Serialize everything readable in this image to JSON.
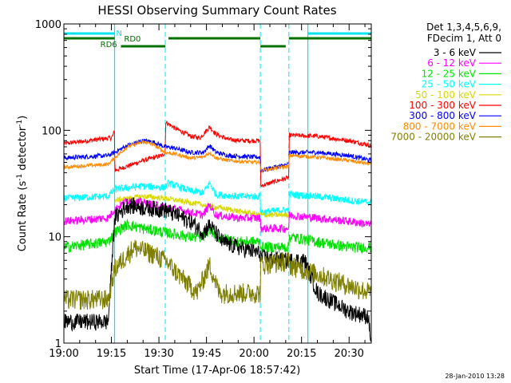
{
  "chart_data": {
    "type": "line",
    "title": "HESSI Observing Summary Count Rates",
    "xlabel": "Start Time (17-Apr-06 18:57:42)",
    "ylabel_main": "Count Rate (s",
    "ylabel_sup1": "-1",
    "ylabel_mid": " detector",
    "ylabel_sup2": "-1",
    "ylabel_end": ")",
    "y_scale": "log",
    "ylim": [
      1,
      1000
    ],
    "xlim_minutes": [
      0,
      97
    ],
    "x_ticks": [
      {
        "m": 0,
        "label": "19:00"
      },
      {
        "m": 15,
        "label": "19:15"
      },
      {
        "m": 30,
        "label": "19:30"
      },
      {
        "m": 45,
        "label": "19:45"
      },
      {
        "m": 60,
        "label": "20:00"
      },
      {
        "m": 75,
        "label": "20:15"
      },
      {
        "m": 90,
        "label": "20:30"
      }
    ],
    "y_ticks": [
      {
        "v": 1,
        "label": "1"
      },
      {
        "v": 10,
        "label": "10"
      },
      {
        "v": 100,
        "label": "100"
      },
      {
        "v": 1000,
        "label": "1000"
      }
    ],
    "legend": {
      "placement": "right",
      "header1": "Det 1,3,4,5,6,9,",
      "header2": "FDecim 1, Att 0",
      "entries": [
        {
          "name": "3 - 6 keV",
          "color": "#000000"
        },
        {
          "name": "6 - 12 keV",
          "color": "#ff00ff"
        },
        {
          "name": "12 - 25 keV",
          "color": "#00e000"
        },
        {
          "name": "25 - 50 keV",
          "color": "#00ffff"
        },
        {
          "name": "50 - 100 keV",
          "color": "#d8d800"
        },
        {
          "name": "100 - 300 keV",
          "color": "#ff0000"
        },
        {
          "name": "300 - 800 keV",
          "color": "#0000ff"
        },
        {
          "name": "800 - 7000 keV",
          "color": "#ff8c00"
        },
        {
          "name": "7000 - 20000 keV",
          "color": "#808000"
        }
      ]
    },
    "night_marker": "N",
    "night_color": "#00e5ee",
    "night_intervals": [
      [
        0,
        16
      ],
      [
        77,
        97
      ]
    ],
    "night_boundaries": [
      16,
      77
    ],
    "saa_boundaries": [
      0,
      16,
      32,
      62,
      71,
      97
    ],
    "rd0_label": "RD0",
    "rd0_intervals": [
      [
        0,
        16
      ],
      [
        33,
        62
      ],
      [
        71,
        97
      ]
    ],
    "rd6_label": "RD6",
    "rd6_intervals": [
      [
        18,
        32
      ],
      [
        62,
        70
      ]
    ],
    "rd_color": "#007000",
    "series": [
      {
        "name": "100 - 300 keV",
        "color": "#ff0000",
        "values": [
          [
            0,
            75
          ],
          [
            15,
            85
          ],
          [
            15.5,
            90
          ],
          [
            16,
            100
          ],
          [
            16.1,
            42
          ],
          [
            20,
            46
          ],
          [
            25,
            52
          ],
          [
            31,
            58
          ],
          [
            32,
            62
          ],
          [
            32.1,
            120
          ],
          [
            35,
            105
          ],
          [
            40,
            88
          ],
          [
            43,
            85
          ],
          [
            46,
            108
          ],
          [
            48,
            92
          ],
          [
            52,
            82
          ],
          [
            56,
            80
          ],
          [
            61,
            80
          ],
          [
            62,
            80
          ],
          [
            62.1,
            30
          ],
          [
            68,
            34
          ],
          [
            71,
            36
          ],
          [
            71.1,
            90
          ],
          [
            80,
            88
          ],
          [
            90,
            80
          ],
          [
            97,
            72
          ]
        ],
        "noise": 0.05
      },
      {
        "name": "300 - 800 keV",
        "color": "#0000ff",
        "values": [
          [
            0,
            55
          ],
          [
            14,
            58
          ],
          [
            16,
            62
          ],
          [
            20,
            72
          ],
          [
            25,
            80
          ],
          [
            28,
            78
          ],
          [
            32,
            70
          ],
          [
            35,
            68
          ],
          [
            40,
            62
          ],
          [
            44,
            62
          ],
          [
            46,
            72
          ],
          [
            48,
            62
          ],
          [
            52,
            58
          ],
          [
            60,
            56
          ],
          [
            62,
            56
          ],
          [
            62.1,
            42
          ],
          [
            71,
            48
          ],
          [
            71.1,
            62
          ],
          [
            80,
            62
          ],
          [
            90,
            58
          ],
          [
            97,
            52
          ]
        ],
        "noise": 0.05
      },
      {
        "name": "800 - 7000 keV",
        "color": "#ff8c00",
        "values": [
          [
            0,
            45
          ],
          [
            14,
            48
          ],
          [
            16,
            55
          ],
          [
            20,
            70
          ],
          [
            25,
            78
          ],
          [
            28,
            74
          ],
          [
            32,
            62
          ],
          [
            35,
            60
          ],
          [
            40,
            55
          ],
          [
            44,
            56
          ],
          [
            46,
            62
          ],
          [
            48,
            55
          ],
          [
            52,
            52
          ],
          [
            60,
            50
          ],
          [
            62,
            50
          ],
          [
            62.1,
            42
          ],
          [
            71,
            46
          ],
          [
            71.1,
            58
          ],
          [
            80,
            56
          ],
          [
            90,
            52
          ],
          [
            97,
            48
          ]
        ],
        "noise": 0.04
      },
      {
        "name": "25 - 50 keV",
        "color": "#00ffff",
        "values": [
          [
            0,
            23
          ],
          [
            14,
            24
          ],
          [
            16,
            28
          ],
          [
            25,
            30
          ],
          [
            32,
            29
          ],
          [
            33,
            32
          ],
          [
            40,
            27
          ],
          [
            44,
            26
          ],
          [
            46,
            32
          ],
          [
            48,
            25
          ],
          [
            55,
            24
          ],
          [
            62,
            24
          ],
          [
            62.1,
            17
          ],
          [
            71,
            18
          ],
          [
            71.1,
            25
          ],
          [
            80,
            24
          ],
          [
            90,
            22
          ],
          [
            97,
            21
          ]
        ],
        "noise": 0.08
      },
      {
        "name": "50 - 100 keV",
        "color": "#d8d800",
        "values": [
          [
            16,
            22
          ],
          [
            25,
            24
          ],
          [
            32,
            23
          ],
          [
            62.1,
            16
          ],
          [
            71,
            16
          ]
        ],
        "noise": 0.06
      },
      {
        "name": "6 - 12 keV",
        "color": "#ff00ff",
        "values": [
          [
            0,
            14
          ],
          [
            14,
            15
          ],
          [
            16,
            18
          ],
          [
            20,
            22
          ],
          [
            25,
            21
          ],
          [
            32,
            19
          ],
          [
            40,
            17
          ],
          [
            44,
            16
          ],
          [
            46,
            20
          ],
          [
            48,
            16
          ],
          [
            55,
            15
          ],
          [
            62,
            15
          ],
          [
            62.1,
            12
          ],
          [
            71,
            12
          ],
          [
            71.1,
            16
          ],
          [
            80,
            15
          ],
          [
            90,
            14
          ],
          [
            97,
            13
          ]
        ],
        "noise": 0.09
      },
      {
        "name": "12 - 25 keV",
        "color": "#00e000",
        "values": [
          [
            0,
            8
          ],
          [
            14,
            9
          ],
          [
            16,
            11
          ],
          [
            20,
            13
          ],
          [
            25,
            12
          ],
          [
            32,
            11
          ],
          [
            40,
            10
          ],
          [
            44,
            10
          ],
          [
            46,
            12
          ],
          [
            48,
            10
          ],
          [
            55,
            9
          ],
          [
            62,
            9
          ],
          [
            62.1,
            8
          ],
          [
            71,
            8
          ],
          [
            71.1,
            10
          ],
          [
            80,
            9
          ],
          [
            90,
            8
          ],
          [
            97,
            8
          ]
        ],
        "noise": 0.12
      },
      {
        "name": "3 - 6 keV",
        "color": "#000000",
        "values": [
          [
            0,
            1.6
          ],
          [
            14,
            1.6
          ],
          [
            16,
            15
          ],
          [
            20,
            20
          ],
          [
            25,
            19
          ],
          [
            32,
            18
          ],
          [
            40,
            14
          ],
          [
            44,
            11
          ],
          [
            46,
            13
          ],
          [
            50,
            9
          ],
          [
            55,
            8
          ],
          [
            62,
            7
          ],
          [
            62.1,
            6.5
          ],
          [
            70,
            6
          ],
          [
            76,
            6
          ],
          [
            80,
            3
          ],
          [
            90,
            2
          ],
          [
            96,
            1.8
          ],
          [
            97,
            1
          ]
        ],
        "noise": 0.18
      },
      {
        "name": "7000 - 20000 keV",
        "color": "#808000",
        "values": [
          [
            0,
            2.6
          ],
          [
            14,
            2.6
          ],
          [
            16,
            5
          ],
          [
            22,
            8
          ],
          [
            28,
            7
          ],
          [
            32,
            6
          ],
          [
            36,
            4.5
          ],
          [
            42,
            3
          ],
          [
            46,
            5.5
          ],
          [
            49,
            3
          ],
          [
            55,
            3
          ],
          [
            62,
            3
          ],
          [
            62.1,
            5.5
          ],
          [
            71,
            6
          ],
          [
            71.1,
            5.5
          ],
          [
            80,
            4.5
          ],
          [
            90,
            3.5
          ],
          [
            97,
            3
          ]
        ],
        "noise": 0.22
      }
    ]
  },
  "footer": {
    "timestamp": "28-Jan-2010 13:28"
  }
}
